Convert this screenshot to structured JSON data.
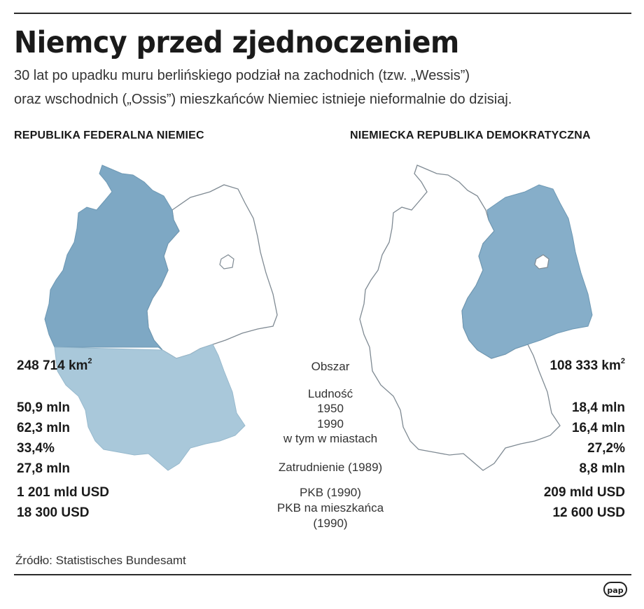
{
  "title": "Niemcy przed zjednoczeniem",
  "subtitle_line1": "30 lat po upadku muru berlińskiego podział na zachodnich (tzw. „Wessis”)",
  "subtitle_line2": "oraz wschodnich („Ossis”) mieszkańców Niemiec istnieje nieformalnie do dzisiaj.",
  "frg": {
    "heading": "REPUBLIKA FEDERALNA NIEMIEC",
    "area": "248 714 km",
    "area_sup": "2",
    "population_1950": "50,9 mln",
    "population_1990": "62,3 mln",
    "urban_share": "33,4%",
    "employment_1989": "27,8 mln",
    "gdp_1990": "1 201 mld USD",
    "gdp_per_capita_1990": "18 300 USD"
  },
  "gdr": {
    "heading": "NIEMIECKA REPUBLIKA DEMOKRATYCZNA",
    "area": "108 333 km",
    "area_sup": "2",
    "population_1950": "18,4 mln",
    "population_1990": "16,4 mln",
    "urban_share": "27,2%",
    "employment_1989": "8,8 mln",
    "gdp_1990": "209 mld USD",
    "gdp_per_capita_1990": "12 600 USD"
  },
  "labels": {
    "area": "Obszar",
    "population": "Ludność",
    "year_1950": "1950",
    "year_1990": "1990",
    "urban": "w tym w miastach",
    "employment": "Zatrudnienie (1989)",
    "gdp": "PKB (1990)",
    "gdp_per_capita": "PKB na mieszkańca",
    "gdp_per_capita_year": "(1990)"
  },
  "source": "Źródło: Statistisches Bundesamt",
  "logo_text": "pap",
  "colors": {
    "frg_fill": "#7ea8c4",
    "frg_fill_light": "#a9c8da",
    "gdr_fill": "#86aec9",
    "outline": "#7f8a93",
    "text": "#1a1a1a"
  }
}
